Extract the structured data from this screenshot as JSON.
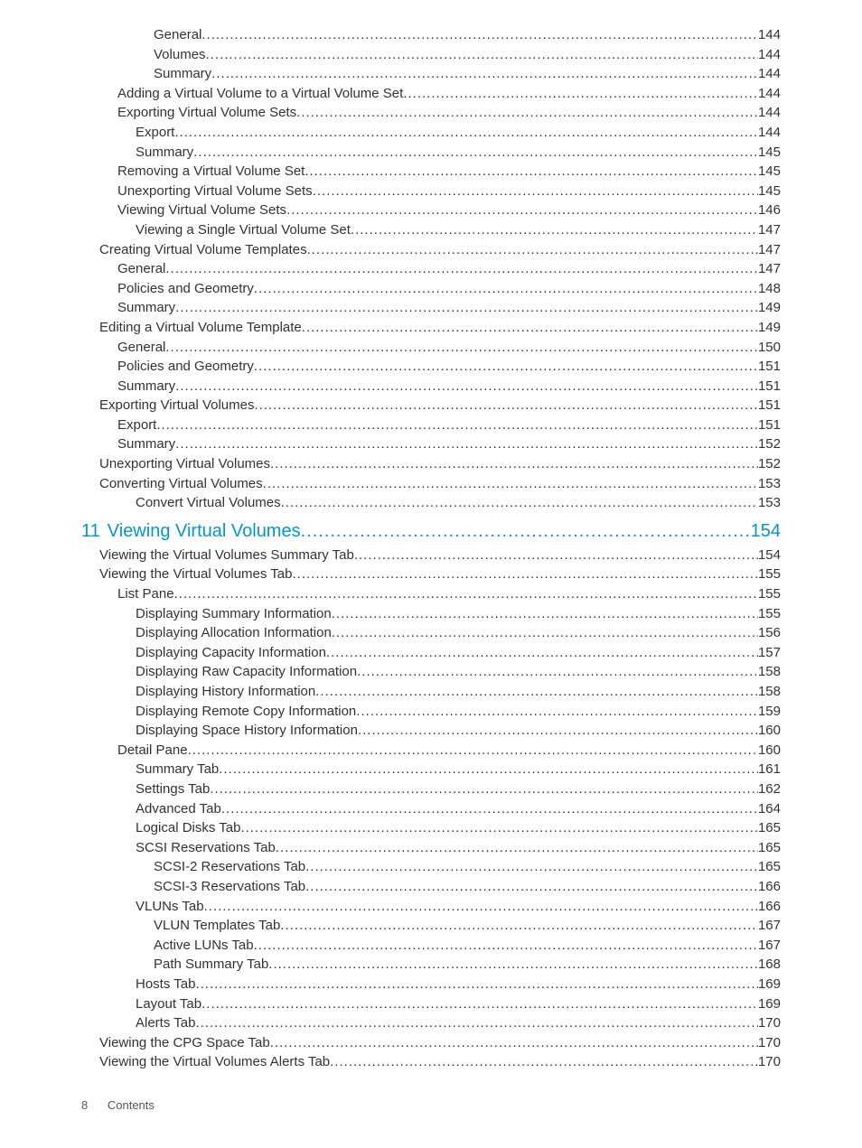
{
  "footer": {
    "page_num": "8",
    "label": "Contents"
  },
  "chapter_accent_color": "#0096d6",
  "body_text_color": "#333333",
  "toc": [
    {
      "indent": 4,
      "label": "General",
      "page": "144"
    },
    {
      "indent": 4,
      "label": "Volumes",
      "page": "144"
    },
    {
      "indent": 4,
      "label": "Summary",
      "page": "144"
    },
    {
      "indent": 2,
      "label": "Adding a Virtual Volume to a Virtual Volume Set",
      "page": "144"
    },
    {
      "indent": 2,
      "label": "Exporting Virtual Volume Sets",
      "page": "144"
    },
    {
      "indent": 3,
      "label": "Export",
      "page": "144"
    },
    {
      "indent": 3,
      "label": "Summary",
      "page": "145"
    },
    {
      "indent": 2,
      "label": "Removing a Virtual Volume Set",
      "page": "145"
    },
    {
      "indent": 2,
      "label": "Unexporting Virtual Volume Sets",
      "page": "145"
    },
    {
      "indent": 2,
      "label": "Viewing Virtual Volume Sets",
      "page": "146"
    },
    {
      "indent": 3,
      "label": "Viewing a Single Virtual Volume Set",
      "page": "147"
    },
    {
      "indent": 1,
      "label": "Creating Virtual Volume Templates",
      "page": "147"
    },
    {
      "indent": 2,
      "label": "General",
      "page": "147"
    },
    {
      "indent": 2,
      "label": "Policies and Geometry",
      "page": "148"
    },
    {
      "indent": 2,
      "label": "Summary",
      "page": "149"
    },
    {
      "indent": 1,
      "label": "Editing a Virtual Volume Template",
      "page": "149"
    },
    {
      "indent": 2,
      "label": "General",
      "page": "150"
    },
    {
      "indent": 2,
      "label": "Policies and Geometry",
      "page": "151"
    },
    {
      "indent": 2,
      "label": "Summary",
      "page": "151"
    },
    {
      "indent": 1,
      "label": "Exporting Virtual Volumes",
      "page": "151"
    },
    {
      "indent": 2,
      "label": "Export",
      "page": "151"
    },
    {
      "indent": 2,
      "label": "Summary",
      "page": "152"
    },
    {
      "indent": 1,
      "label": "Unexporting Virtual Volumes",
      "page": "152"
    },
    {
      "indent": 1,
      "label": "Converting Virtual Volumes",
      "page": "153"
    },
    {
      "indent": 3,
      "label": "Convert Virtual Volumes",
      "page": "153"
    },
    {
      "indent": 0,
      "chapter_num": "11",
      "label": "Viewing Virtual Volumes",
      "page": "154",
      "is_chapter": true
    },
    {
      "indent": 1,
      "label": "Viewing the Virtual Volumes Summary Tab",
      "page": "154"
    },
    {
      "indent": 1,
      "label": "Viewing the Virtual Volumes Tab",
      "page": "155"
    },
    {
      "indent": 2,
      "label": "List Pane",
      "page": "155"
    },
    {
      "indent": 3,
      "label": "Displaying Summary Information",
      "page": "155"
    },
    {
      "indent": 3,
      "label": "Displaying Allocation Information",
      "page": "156"
    },
    {
      "indent": 3,
      "label": "Displaying Capacity Information",
      "page": "157"
    },
    {
      "indent": 3,
      "label": "Displaying Raw Capacity Information",
      "page": "158"
    },
    {
      "indent": 3,
      "label": "Displaying History Information",
      "page": "158"
    },
    {
      "indent": 3,
      "label": "Displaying Remote Copy Information",
      "page": "159"
    },
    {
      "indent": 3,
      "label": "Displaying Space History Information",
      "page": "160"
    },
    {
      "indent": 2,
      "label": "Detail Pane",
      "page": "160"
    },
    {
      "indent": 3,
      "label": "Summary Tab",
      "page": "161"
    },
    {
      "indent": 3,
      "label": "Settings Tab",
      "page": "162"
    },
    {
      "indent": 3,
      "label": "Advanced Tab",
      "page": "164"
    },
    {
      "indent": 3,
      "label": "Logical Disks Tab",
      "page": "165"
    },
    {
      "indent": 3,
      "label": "SCSI Reservations Tab",
      "page": "165"
    },
    {
      "indent": 4,
      "label": "SCSI-2 Reservations Tab",
      "page": "165"
    },
    {
      "indent": 4,
      "label": "SCSI-3 Reservations Tab",
      "page": "166"
    },
    {
      "indent": 3,
      "label": "VLUNs Tab",
      "page": "166"
    },
    {
      "indent": 4,
      "label": "VLUN Templates Tab",
      "page": "167"
    },
    {
      "indent": 4,
      "label": "Active LUNs Tab",
      "page": "167"
    },
    {
      "indent": 4,
      "label": "Path Summary Tab",
      "page": "168"
    },
    {
      "indent": 3,
      "label": "Hosts Tab",
      "page": "169"
    },
    {
      "indent": 3,
      "label": "Layout Tab",
      "page": "169"
    },
    {
      "indent": 3,
      "label": "Alerts Tab",
      "page": "170"
    },
    {
      "indent": 1,
      "label": "Viewing the CPG Space Tab",
      "page": "170"
    },
    {
      "indent": 1,
      "label": "Viewing the Virtual Volumes Alerts Tab",
      "page": "170"
    }
  ]
}
